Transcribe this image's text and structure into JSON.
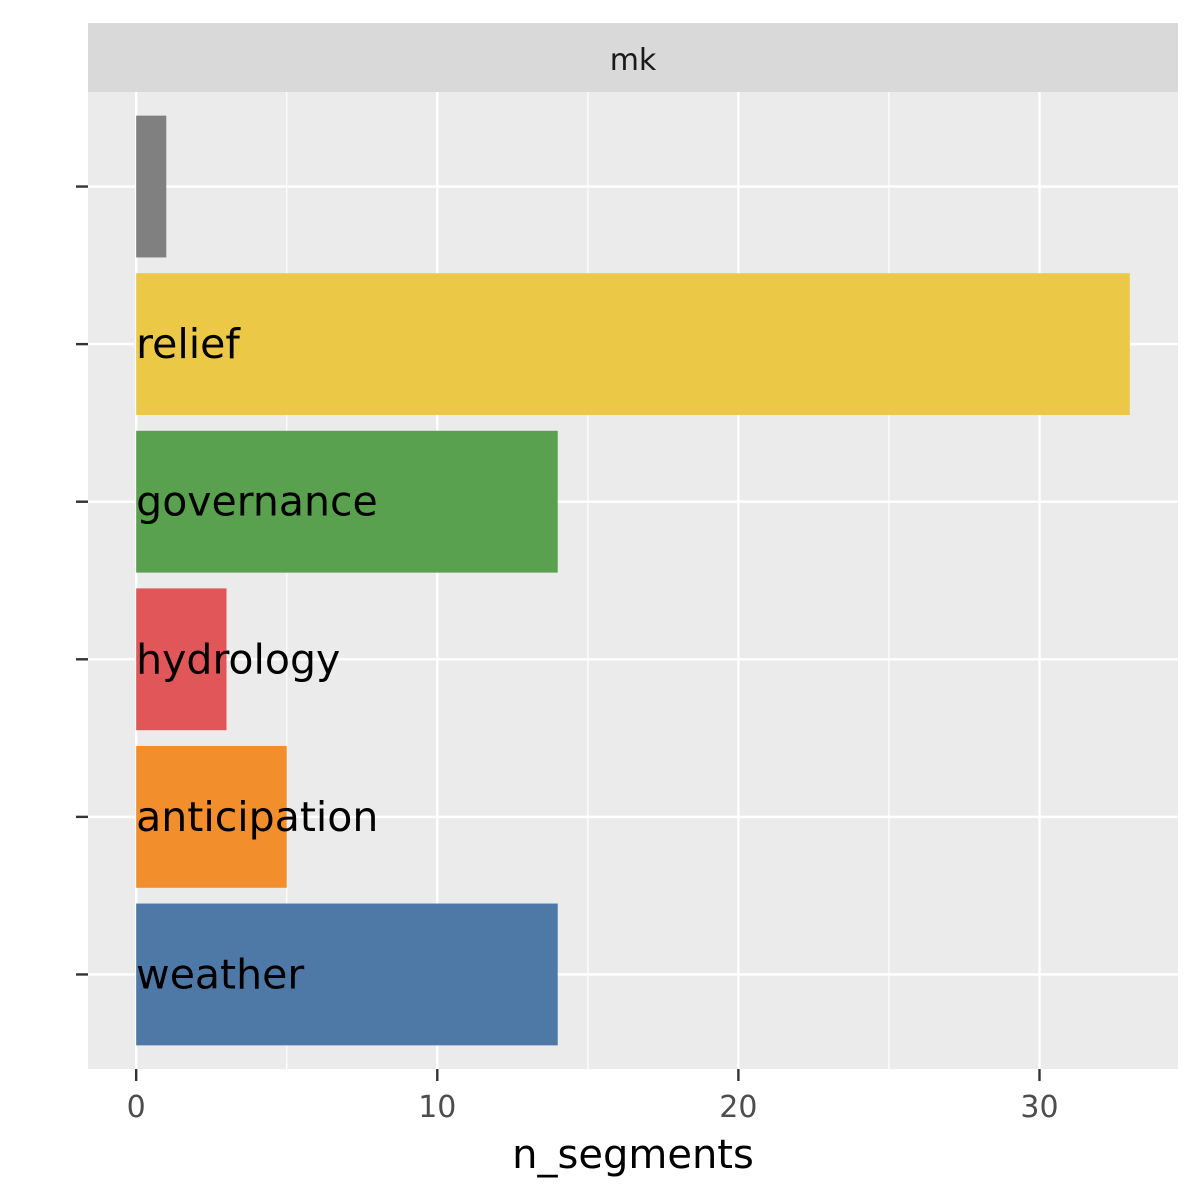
{
  "chart_data": {
    "type": "bar",
    "orientation": "horizontal",
    "facet_label": "mk",
    "xlabel": "n_segments",
    "ylabel": "",
    "xlim": [
      -1.6,
      34.6
    ],
    "x_ticks": [
      0,
      10,
      20,
      30
    ],
    "grid": true,
    "categories": [
      "",
      "relief",
      "governance",
      "hydrology",
      "anticipation",
      "weather"
    ],
    "values": [
      1,
      33,
      14,
      3,
      5,
      14
    ],
    "colors": [
      "#808080",
      "#EBC946",
      "#59A14F",
      "#E15759",
      "#F28E2B",
      "#4E79A7"
    ]
  }
}
